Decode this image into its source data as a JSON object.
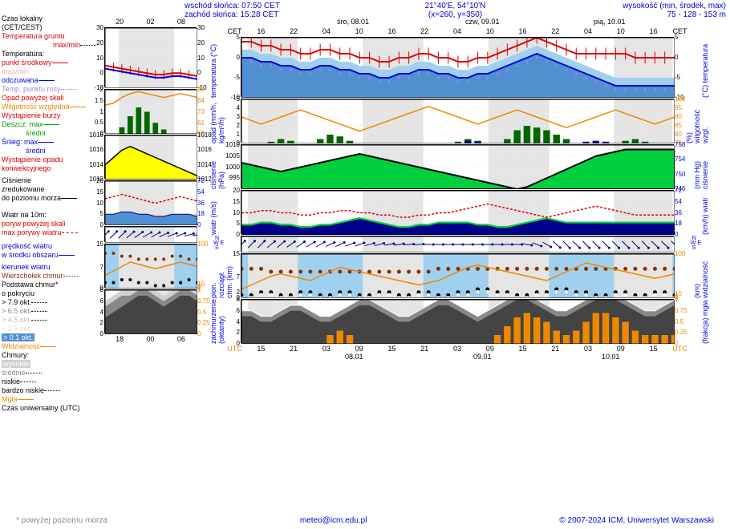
{
  "header": {
    "sunrise": "wschód słońca: 07:50 CET",
    "sunset": "zachód słońca: 15:28 CET",
    "coords": "21°40'E, 54°10'N",
    "grid": "(x=260, y=350)",
    "elevation_label": "wysokość (min, środek, max)",
    "elevation": "75 - 128 - 153 m"
  },
  "colors": {
    "red": "#dd0000",
    "blue": "#0000dd",
    "darkblue": "#000088",
    "lightblue": "#a0d0ef",
    "medblue": "#5090d0",
    "green": "#009900",
    "darkgreen": "#006600",
    "orange": "#ee8800",
    "yellow": "#ffff00",
    "cyan": "#00e0c0",
    "brightgreen": "#00d040",
    "black": "#000000",
    "gray": "#888888",
    "darkgray": "#444444",
    "lightgray": "#d0d0d0",
    "nightgray": "#e5e5e5",
    "brown": "#883300",
    "purple": "#9090d0"
  },
  "legend": {
    "local_time": "Czas lokalny",
    "local_time2": "(CET/CEST)",
    "ground_temp": "Temperatura gruntu",
    "maxmin": "max/min",
    "temp": "Temperatura:",
    "center": "punkt środkowy",
    "maxmin2": "max/min",
    "felt": "odczuwana",
    "dewpoint": "Temp. punktu rosy",
    "precip_off": "Opad powyżej skali",
    "humidity": "Wilgotność względna",
    "storm": "Wystąpienie burzy",
    "rain": "Deszcz:",
    "max": "max",
    "avg": "średni",
    "snow": "Śnieg:",
    "conv_precip1": "Wystąpienie opadu",
    "conv_precip2": "konwekcyjnego",
    "pressure": "Ciśnienie",
    "pressure2": "zredukowane",
    "pressure3": "do poziomu morza",
    "wind10m": "Wiatr na 10m:",
    "gust_off": "poryw powyżej skali",
    "max_gust": "max porywy wiatru",
    "wind_speed1": "prędkość wiatru",
    "wind_speed2": "w środku obszaru",
    "wind_dir": "kierunek wiatru",
    "cloud_top": "Wierzchołek chmur",
    "cloud_base": "Podstawa chmur*",
    "coverage": "o pokryciu",
    "ok79": "> 7.9 okt.",
    "ok65": "> 6.5 okt.",
    "ok45": "> 4.5 okt.",
    "ok25": "> 2.5 okt.",
    "ok01": "> 0.1 okt.",
    "visibility": "Widzialność",
    "clouds": "Chmury:",
    "high": "wysokie",
    "medium": "średnie",
    "low": "niskie",
    "vlow": "bardzo niskie",
    "fog": "Mgła",
    "utc": "Czas uniwersalny (UTC)",
    "note": "* powyżej poziomu morza"
  },
  "time_axis": {
    "left_top": [
      "20",
      "02",
      "08"
    ],
    "left_bottom": [
      "18",
      "00",
      "06"
    ],
    "right_top": [
      "CET",
      "16",
      "22",
      "04",
      "10",
      "16",
      "22",
      "04",
      "10",
      "16",
      "22",
      "04",
      "10",
      "16",
      "CET"
    ],
    "right_bottom": [
      "UTC",
      "15",
      "21",
      "03",
      "09",
      "15",
      "21",
      "03",
      "09",
      "15",
      "21",
      "03",
      "09",
      "15",
      "UTC"
    ],
    "dates_top": [
      "śro, 08.01",
      "czw, 09.01",
      "pią, 10.01"
    ],
    "dates_bottom": [
      "08.01",
      "09.01",
      "10.01"
    ]
  },
  "vlabels": {
    "temp_l": "temperatura\n(°C)",
    "temp_r": "(°C)\ntemperatura",
    "precip_l": "opad\n(mm/h, kg/m²/h)",
    "precip_r": "(%)\nwilgotność wzgl.",
    "press_l": "ciśnienie\n(hPa)",
    "press_r": "(mm Hg)\nciśnienie",
    "wind_l": "wiatr\n(m/s)",
    "wind_r": "(km/h)\nwiatr",
    "cloud_l": "pion. rozciągł. chm.\n(km)",
    "cloud_r": "(km)\nwidzialność",
    "fog_l": "zachmurzenie\n(oktanty)",
    "fog_r": "(frakcja)\nmgła",
    "wdir": "N\nW  E\nS"
  },
  "charts": {
    "temp_small": {
      "h": 75,
      "ylim": [
        -10,
        30
      ],
      "yticks": [
        -10,
        0,
        10,
        20,
        30
      ],
      "red_line": [
        5,
        4,
        3,
        2,
        1,
        0,
        -1,
        -1,
        0,
        0,
        -1,
        -2
      ],
      "blue_line": [
        3,
        2,
        1,
        0,
        -1,
        -2,
        -3,
        -3,
        -2,
        -2,
        -3,
        -4
      ]
    },
    "temp_main": {
      "h": 75,
      "ylim": [
        -10,
        5
      ],
      "ylim_r": [
        -10,
        5
      ],
      "yticks": [
        -10,
        -5,
        0,
        5
      ],
      "red_line": [
        4,
        4,
        3,
        3,
        2,
        2,
        1,
        1,
        2,
        2,
        1,
        1,
        0,
        0,
        -1,
        -1,
        0,
        0,
        1,
        1,
        0,
        0,
        -1,
        -1,
        0,
        0,
        1,
        2,
        3,
        4,
        5,
        4,
        3,
        2,
        1,
        1,
        1,
        1,
        1,
        1,
        0,
        0,
        0,
        0,
        0
      ],
      "blue_line": [
        0,
        0,
        -1,
        -1,
        -2,
        -2,
        -3,
        -3,
        -2,
        -2,
        -3,
        -3,
        -4,
        -4,
        -5,
        -5,
        -4,
        -4,
        -3,
        -3,
        -4,
        -4,
        -5,
        -5,
        -4,
        -4,
        -3,
        -2,
        -1,
        0,
        1,
        0,
        -1,
        -2,
        -3,
        -4,
        -5,
        -6,
        -7,
        -7,
        -7,
        -7,
        -7,
        -7,
        -7
      ],
      "fill_color": "#a0d0ef"
    },
    "precip_small": {
      "h": 55,
      "ylim": [
        0,
        2
      ],
      "ylim_r": [
        50,
        96
      ],
      "yticks": [
        0,
        0.5,
        1,
        1.5,
        2
      ],
      "orange_line": [
        80,
        82,
        88,
        92,
        94,
        92,
        90,
        88,
        90,
        92,
        90,
        88
      ],
      "green_bars": [
        0,
        0,
        0.3,
        0.8,
        1.2,
        1.0,
        0.5,
        0.2,
        0,
        0,
        0,
        0
      ]
    },
    "precip_main": {
      "h": 55,
      "ylim": [
        0,
        5
      ],
      "ylim_r": [
        75,
        100
      ],
      "yticks": [
        0,
        1,
        2,
        3,
        4,
        5
      ],
      "orange_line": [
        90,
        88,
        86,
        88,
        90,
        92,
        94,
        92,
        90,
        88,
        86,
        84,
        82,
        84,
        86,
        88,
        90,
        92,
        94,
        96,
        94,
        92,
        90,
        88,
        86,
        88,
        90,
        92,
        94,
        92,
        90,
        88,
        86,
        84,
        86,
        88,
        90,
        92,
        94,
        92,
        90,
        88,
        86,
        88,
        90
      ],
      "green_bars": [
        0,
        0,
        0,
        0.2,
        0.5,
        0.3,
        0,
        0,
        0.5,
        1.0,
        0.8,
        0.3,
        0,
        0,
        0,
        0,
        0,
        0,
        0,
        0,
        0,
        0,
        0.2,
        0.5,
        0.3,
        0,
        0,
        0.5,
        1.5,
        2.0,
        1.8,
        1.5,
        1.0,
        0.5,
        0,
        0,
        0,
        0,
        0,
        0.3,
        0.5,
        0.2,
        0,
        0,
        0
      ],
      "blue_bars": [
        0,
        0,
        0,
        0,
        0,
        0,
        0,
        0,
        0,
        0,
        0,
        0,
        0,
        0,
        0,
        0,
        0,
        0,
        0,
        0,
        0,
        0,
        0,
        0.3,
        0.2,
        0,
        0,
        0,
        0,
        0,
        0,
        0,
        0,
        0,
        0,
        0.2,
        0.3,
        0.2,
        0,
        0,
        0,
        0,
        0,
        0,
        0
      ]
    },
    "press_small": {
      "h": 55,
      "ylim": [
        1012,
        1018
      ],
      "yticks": [
        1012,
        1014,
        1016,
        1018
      ],
      "line": [
        1014,
        1015,
        1016,
        1016.5,
        1016,
        1015.5,
        1015,
        1014.5,
        1014,
        1013.5,
        1013,
        1012.5
      ]
    },
    "press_main": {
      "h": 55,
      "ylim": [
        990,
        1010
      ],
      "ylim_r": [
        746,
        758
      ],
      "yticks": [
        995,
        1000,
        1005,
        1010
      ],
      "line": [
        1002,
        1001,
        1000,
        999,
        998,
        999,
        1000,
        1001,
        1002,
        1003,
        1004,
        1005,
        1006,
        1005,
        1004,
        1003,
        1002,
        1001,
        1000,
        999,
        998,
        997,
        996,
        995,
        994,
        993,
        992,
        991,
        990,
        991,
        993,
        995,
        997,
        999,
        1001,
        1003,
        1005,
        1006,
        1007,
        1008,
        1008,
        1008,
        1008,
        1008,
        1008
      ]
    },
    "wind_small": {
      "h": 55,
      "ylim": [
        0,
        20
      ],
      "ylim_r": [
        0,
        72
      ],
      "yticks": [
        0,
        5,
        10,
        15,
        20
      ],
      "red_dash": [
        12,
        13,
        14,
        13,
        12,
        11,
        10,
        11,
        12,
        13,
        12,
        11
      ],
      "blue_area": [
        5,
        5,
        6,
        6,
        5,
        5,
        4,
        4,
        5,
        5,
        5,
        4
      ]
    },
    "wind_main": {
      "h": 55,
      "ylim": [
        0,
        20
      ],
      "ylim_r": [
        0,
        72
      ],
      "yticks": [
        0,
        5,
        10,
        15,
        20
      ],
      "red_dash": [
        10,
        10,
        11,
        11,
        10,
        10,
        9,
        9,
        10,
        10,
        11,
        11,
        10,
        10,
        9,
        9,
        8,
        8,
        9,
        9,
        10,
        10,
        11,
        12,
        13,
        14,
        13,
        12,
        11,
        10,
        9,
        8,
        9,
        10,
        11,
        12,
        13,
        12,
        11,
        10,
        9,
        9,
        9,
        9,
        9
      ],
      "blue_area": [
        4,
        4,
        5,
        5,
        4,
        4,
        3,
        3,
        4,
        4,
        5,
        6,
        7,
        6,
        5,
        4,
        3,
        3,
        4,
        4,
        5,
        5,
        5,
        5,
        4,
        4,
        3,
        3,
        4,
        5,
        6,
        7,
        6,
        5,
        5,
        5,
        5,
        5,
        5,
        5,
        5,
        5,
        5,
        5,
        5
      ]
    },
    "wind_dir_small": {
      "h": 20,
      "dirs": [
        225,
        225,
        225,
        230,
        235,
        240,
        240,
        245,
        250,
        250,
        255,
        260
      ]
    },
    "wind_dir_main": {
      "h": 20,
      "dirs": [
        225,
        225,
        225,
        230,
        230,
        235,
        235,
        240,
        240,
        245,
        245,
        250,
        250,
        255,
        255,
        260,
        260,
        265,
        265,
        270,
        270,
        270,
        270,
        270,
        270,
        270,
        270,
        270,
        270,
        280,
        290,
        300,
        310,
        315,
        315,
        315,
        315,
        315,
        315,
        315,
        315,
        315,
        315,
        315,
        315
      ]
    },
    "cloud_small": {
      "h": 55,
      "ylim": [
        0,
        15
      ],
      "ylim_r": [
        0,
        100
      ],
      "yticks": [
        0,
        7,
        15
      ],
      "brown_dots": [
        12,
        12,
        11,
        11,
        10,
        10,
        10,
        10,
        11,
        11,
        10,
        10
      ],
      "orange_line": [
        30,
        40,
        50,
        60,
        55,
        50,
        45,
        50,
        55,
        60,
        55,
        50
      ],
      "black_dots": [
        2,
        2,
        3,
        3,
        2,
        2,
        1,
        1,
        2,
        2,
        3,
        2
      ]
    },
    "cloud_main": {
      "h": 55,
      "ylim": [
        0,
        15
      ],
      "ylim_r": [
        0,
        100
      ],
      "yticks": [
        0,
        2,
        7,
        15
      ],
      "brown_dots": [
        10,
        10,
        10,
        9,
        9,
        9,
        9,
        9,
        9,
        9,
        9,
        9,
        9,
        9,
        9,
        9,
        9,
        9,
        9,
        9,
        10,
        10,
        10,
        10,
        10,
        10,
        10,
        10,
        10,
        10,
        10,
        10,
        10,
        10,
        10,
        10,
        10,
        10,
        10,
        10,
        10,
        10,
        10,
        10,
        10
      ],
      "orange_line": [
        20,
        30,
        40,
        50,
        55,
        50,
        45,
        40,
        50,
        60,
        70,
        65,
        60,
        55,
        50,
        45,
        40,
        35,
        30,
        35,
        40,
        50,
        60,
        70,
        75,
        70,
        65,
        60,
        55,
        50,
        45,
        40,
        50,
        60,
        70,
        80,
        75,
        70,
        65,
        60,
        55,
        50,
        45,
        50,
        55
      ],
      "black_dots": [
        1,
        1,
        2,
        2,
        1,
        1,
        2,
        2,
        1,
        1,
        2,
        2,
        1,
        1,
        2,
        2,
        1,
        1,
        2,
        2,
        1,
        1,
        2,
        2,
        3,
        3,
        2,
        2,
        1,
        1,
        2,
        2,
        3,
        3,
        2,
        2,
        1,
        1,
        2,
        2,
        1,
        1,
        2,
        2,
        1
      ]
    },
    "clouds_cover_small": {
      "h": 55,
      "ylim": [
        0,
        8
      ],
      "ylim_r": [
        0,
        1
      ],
      "yticks": [
        0,
        2,
        4,
        6,
        8
      ],
      "dark": [
        3,
        4,
        5,
        6,
        7,
        7,
        6,
        5,
        6,
        7,
        7,
        6
      ],
      "med": [
        5,
        6,
        7,
        7,
        8,
        8,
        7,
        6,
        7,
        8,
        8,
        7
      ],
      "light": [
        6,
        7,
        8,
        8,
        8,
        8,
        8,
        7,
        8,
        8,
        8,
        8
      ]
    },
    "clouds_cover_main": {
      "h": 55,
      "ylim": [
        0,
        8
      ],
      "ylim_r": [
        0,
        1
      ],
      "yticks": [
        0,
        2,
        4,
        6,
        8
      ],
      "dark": [
        5,
        5,
        4,
        4,
        5,
        6,
        6,
        5,
        4,
        4,
        5,
        6,
        7,
        7,
        6,
        5,
        4,
        4,
        5,
        6,
        7,
        7,
        6,
        5,
        4,
        5,
        6,
        7,
        8,
        8,
        7,
        6,
        5,
        5,
        6,
        7,
        8,
        8,
        8,
        7,
        6,
        5,
        5,
        6,
        7
      ],
      "med": [
        6,
        6,
        5,
        5,
        6,
        7,
        7,
        6,
        5,
        5,
        6,
        7,
        8,
        8,
        7,
        6,
        5,
        5,
        6,
        7,
        8,
        8,
        7,
        6,
        5,
        6,
        7,
        8,
        8,
        8,
        8,
        7,
        6,
        6,
        7,
        8,
        8,
        8,
        8,
        8,
        7,
        6,
        6,
        7,
        8
      ],
      "orange_bars": [
        0,
        0,
        0,
        0,
        0,
        0,
        0,
        0,
        0,
        0.2,
        0.3,
        0.2,
        0,
        0,
        0,
        0,
        0,
        0,
        0,
        0,
        0,
        0,
        0,
        0,
        0,
        0,
        0.2,
        0.4,
        0.6,
        0.7,
        0.6,
        0.5,
        0.3,
        0.2,
        0.3,
        0.5,
        0.7,
        0.7,
        0.6,
        0.5,
        0.3,
        0.2,
        0.2,
        0.2,
        0.2
      ]
    }
  },
  "footer": {
    "email": "meteo@icm.edu.pl",
    "copyright": "© 2007-2024 ICM, Uniwersytet Warszawski"
  }
}
